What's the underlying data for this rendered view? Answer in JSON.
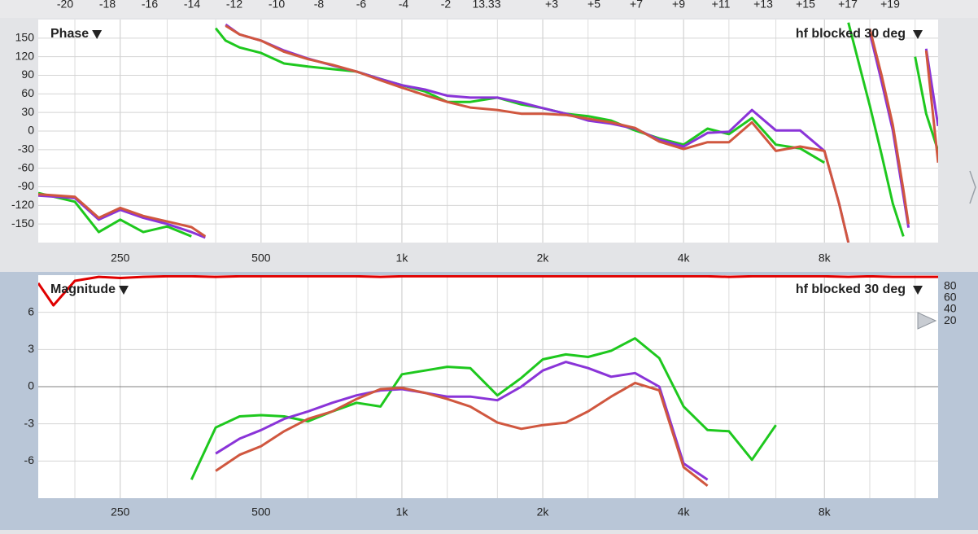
{
  "top_ruler": [
    "-20",
    "-18",
    "-16",
    "-14",
    "-12",
    "-10",
    "-8",
    "-6",
    "-4",
    "-2",
    "13.33",
    "+3",
    "+5",
    "+7",
    "+9",
    "+11",
    "+13",
    "+15",
    "+17",
    "+19"
  ],
  "chart_data": [
    {
      "type": "line",
      "title": "Phase",
      "annotation": "hf blocked 30 deg",
      "xscale": "log",
      "xlim": [
        167,
        14000
      ],
      "ylim": [
        -180,
        180
      ],
      "xticks": [
        250,
        500,
        {
          "value": 1000,
          "label": "1k"
        },
        {
          "value": 2000,
          "label": "2k"
        },
        {
          "value": 4000,
          "label": "4k"
        },
        {
          "value": 8000,
          "label": "8k"
        }
      ],
      "xgrid_minor": [
        200,
        315,
        400,
        630,
        800,
        1250,
        1600,
        2500,
        3150,
        5000,
        6300,
        10000,
        12500
      ],
      "yticks": [
        150,
        120,
        90,
        60,
        30,
        0,
        -30,
        -60,
        -90,
        -120,
        -150
      ],
      "grid": true,
      "x": [
        167,
        200,
        225,
        250,
        280,
        315,
        355,
        380,
        400,
        420,
        450,
        500,
        560,
        630,
        710,
        800,
        900,
        1000,
        1120,
        1250,
        1400,
        1600,
        1800,
        2000,
        2240,
        2500,
        2800,
        3150,
        3550,
        4000,
        4500,
        5000,
        5600,
        6300,
        7100,
        8000,
        8600,
        9000,
        9400,
        10000,
        10600,
        11200,
        11800,
        12100,
        12500,
        13200,
        14000
      ],
      "series": [
        {
          "color": "#1ec81e",
          "values": [
            -100,
            -114,
            -163,
            -143,
            -163,
            -154,
            -170,
            null,
            166,
            146,
            135,
            126,
            109,
            104,
            100,
            96,
            84,
            74,
            64,
            47,
            47,
            54,
            43,
            37,
            28,
            24,
            17,
            1,
            -12,
            -22,
            4,
            -5,
            21,
            -22,
            -28,
            -51,
            null,
            175,
            120,
            41,
            -38,
            -117,
            -170,
            null,
            120,
            28,
            -32
          ]
        },
        {
          "color": "#8a34d8",
          "values": [
            -104,
            -108,
            -143,
            -127,
            -140,
            -150,
            -163,
            -172,
            null,
            172,
            156,
            146,
            130,
            117,
            106,
            96,
            84,
            74,
            67,
            57,
            54,
            54,
            46,
            37,
            28,
            17,
            12,
            4,
            -14,
            -25,
            -3,
            -1,
            34,
            1,
            1,
            -32,
            -117,
            -180,
            null,
            159,
            80,
            1,
            -104,
            -156,
            null,
            133,
            8
          ]
        },
        {
          "color": "#d0573f",
          "values": [
            -102,
            -106,
            -140,
            -124,
            -137,
            -146,
            -155,
            -170,
            null,
            170,
            156,
            146,
            128,
            116,
            107,
            96,
            82,
            70,
            58,
            47,
            38,
            34,
            28,
            28,
            26,
            20,
            14,
            5,
            -17,
            -29,
            -18,
            -18,
            14,
            -32,
            -25,
            -32,
            -117,
            -180,
            null,
            165,
            90,
            10,
            -95,
            -150,
            null,
            130,
            -51
          ]
        }
      ]
    },
    {
      "type": "line",
      "title": "Magnitude",
      "annotation": "hf blocked 30 deg",
      "xscale": "log",
      "xlim": [
        167,
        14000
      ],
      "ylim": [
        -9,
        9
      ],
      "y2lim": [
        -291,
        100
      ],
      "xticks": [
        250,
        500,
        {
          "value": 1000,
          "label": "1k"
        },
        {
          "value": 2000,
          "label": "2k"
        },
        {
          "value": 4000,
          "label": "4k"
        },
        {
          "value": 8000,
          "label": "8k"
        }
      ],
      "xgrid_minor": [
        200,
        315,
        400,
        630,
        800,
        1250,
        1600,
        2500,
        3150,
        5000,
        6300,
        10000,
        12500
      ],
      "yticks": [
        6,
        3,
        0,
        -3,
        -6
      ],
      "y2ticks": [
        80,
        60,
        40,
        20
      ],
      "grid": true,
      "zero_line": true,
      "x": [
        167,
        180,
        200,
        225,
        250,
        280,
        315,
        355,
        400,
        450,
        500,
        560,
        630,
        710,
        800,
        900,
        1000,
        1120,
        1250,
        1400,
        1600,
        1800,
        2000,
        2240,
        2500,
        2800,
        3150,
        3550,
        4000,
        4500,
        5000,
        5600,
        6300,
        7100,
        8000,
        9000,
        10000,
        11200,
        12500,
        14000
      ],
      "series": [
        {
          "color": "#e00000",
          "axis": "y2",
          "values": [
            86,
            47,
            90,
            97,
            95,
            97,
            98,
            98,
            97,
            98,
            98,
            98,
            98,
            98,
            98,
            97,
            98,
            98,
            98,
            98,
            98,
            98,
            98,
            98,
            98,
            98,
            98,
            98,
            98,
            98,
            97,
            98,
            98,
            98,
            98,
            97,
            98,
            97,
            97,
            97
          ]
        },
        {
          "color": "#1ec81e",
          "values": [
            null,
            null,
            null,
            null,
            null,
            null,
            null,
            -7.5,
            -3.3,
            -2.4,
            -2.3,
            -2.4,
            -2.8,
            -2.0,
            -1.3,
            -1.6,
            1.0,
            1.3,
            1.6,
            1.5,
            -0.7,
            0.7,
            2.2,
            2.6,
            2.4,
            2.9,
            3.9,
            2.3,
            -1.6,
            -3.5,
            -3.6,
            -5.9,
            -3.1,
            null,
            null,
            null,
            null,
            null,
            null,
            null
          ]
        },
        {
          "color": "#8a34d8",
          "values": [
            null,
            null,
            null,
            null,
            null,
            null,
            null,
            null,
            -5.4,
            -4.2,
            -3.5,
            -2.6,
            -2.0,
            -1.3,
            -0.7,
            -0.3,
            -0.2,
            -0.5,
            -0.8,
            -0.8,
            -1.1,
            0,
            1.3,
            2.0,
            1.5,
            0.8,
            1.1,
            0,
            -6.2,
            -7.5,
            null,
            null,
            null,
            null,
            null,
            null,
            null,
            null,
            null,
            null
          ]
        },
        {
          "color": "#d0573f",
          "values": [
            null,
            null,
            null,
            null,
            null,
            null,
            null,
            null,
            -6.8,
            -5.5,
            -4.8,
            -3.6,
            -2.6,
            -2.0,
            -1.0,
            -0.2,
            -0.1,
            -0.5,
            -1.0,
            -1.6,
            -2.9,
            -3.4,
            -3.1,
            -2.9,
            -2.0,
            -0.8,
            0.3,
            -0.3,
            -6.5,
            -8.0,
            null,
            null,
            null,
            null,
            null,
            null,
            null,
            null,
            null,
            null
          ]
        }
      ]
    }
  ]
}
